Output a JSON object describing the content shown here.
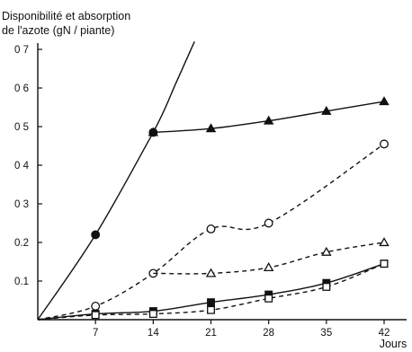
{
  "chart_data": {
    "type": "line",
    "title": "",
    "ylabel_lines": [
      "Disponibilité et absorption",
      "de l'azote (gN / piante)"
    ],
    "xlabel": "Jours",
    "xlim": [
      0,
      44
    ],
    "ylim": [
      0,
      0.72
    ],
    "x_ticks": [
      7,
      14,
      21,
      28,
      35,
      42
    ],
    "x_tick_labels": [
      "7",
      "14",
      "21",
      "28",
      "35",
      "42"
    ],
    "y_ticks": [
      0.1,
      0.2,
      0.3,
      0.4,
      0.5,
      0.6,
      0.7
    ],
    "y_tick_labels": [
      "0.1",
      "0.2",
      "0 3",
      "0 4",
      "0 5",
      "0 6",
      "0 7"
    ],
    "grid": false,
    "legend": "none",
    "series": [
      {
        "marker": "filled-circle",
        "line": "solid",
        "x": [
          7,
          14
        ],
        "y": [
          0.22,
          0.485
        ],
        "curve_from_origin": true,
        "extension_dotted_to": [
          19,
          0.72
        ]
      },
      {
        "marker": "filled-triangle",
        "line": "solid",
        "x": [
          14,
          21,
          28,
          35,
          42
        ],
        "y": [
          0.485,
          0.495,
          0.515,
          0.54,
          0.565
        ]
      },
      {
        "marker": "open-circle",
        "line": "dashed",
        "x": [
          7,
          14,
          21,
          28,
          42
        ],
        "y": [
          0.035,
          0.12,
          0.235,
          0.25,
          0.455
        ],
        "curve_from_origin": true
      },
      {
        "marker": "open-triangle",
        "line": "dashed",
        "x": [
          21,
          28,
          35,
          42
        ],
        "y": [
          0.12,
          0.135,
          0.175,
          0.2
        ],
        "curve_start": [
          14,
          0.12
        ]
      },
      {
        "marker": "filled-square",
        "line": "solid",
        "x": [
          7,
          14,
          21,
          28,
          35,
          42
        ],
        "y": [
          0.015,
          0.022,
          0.045,
          0.065,
          0.095,
          0.145
        ],
        "curve_from_origin": true
      },
      {
        "marker": "open-square",
        "line": "dashed",
        "x": [
          7,
          14,
          21,
          28,
          35,
          42
        ],
        "y": [
          0.012,
          0.015,
          0.025,
          0.055,
          0.085,
          0.145
        ],
        "curve_from_origin": true
      }
    ]
  }
}
